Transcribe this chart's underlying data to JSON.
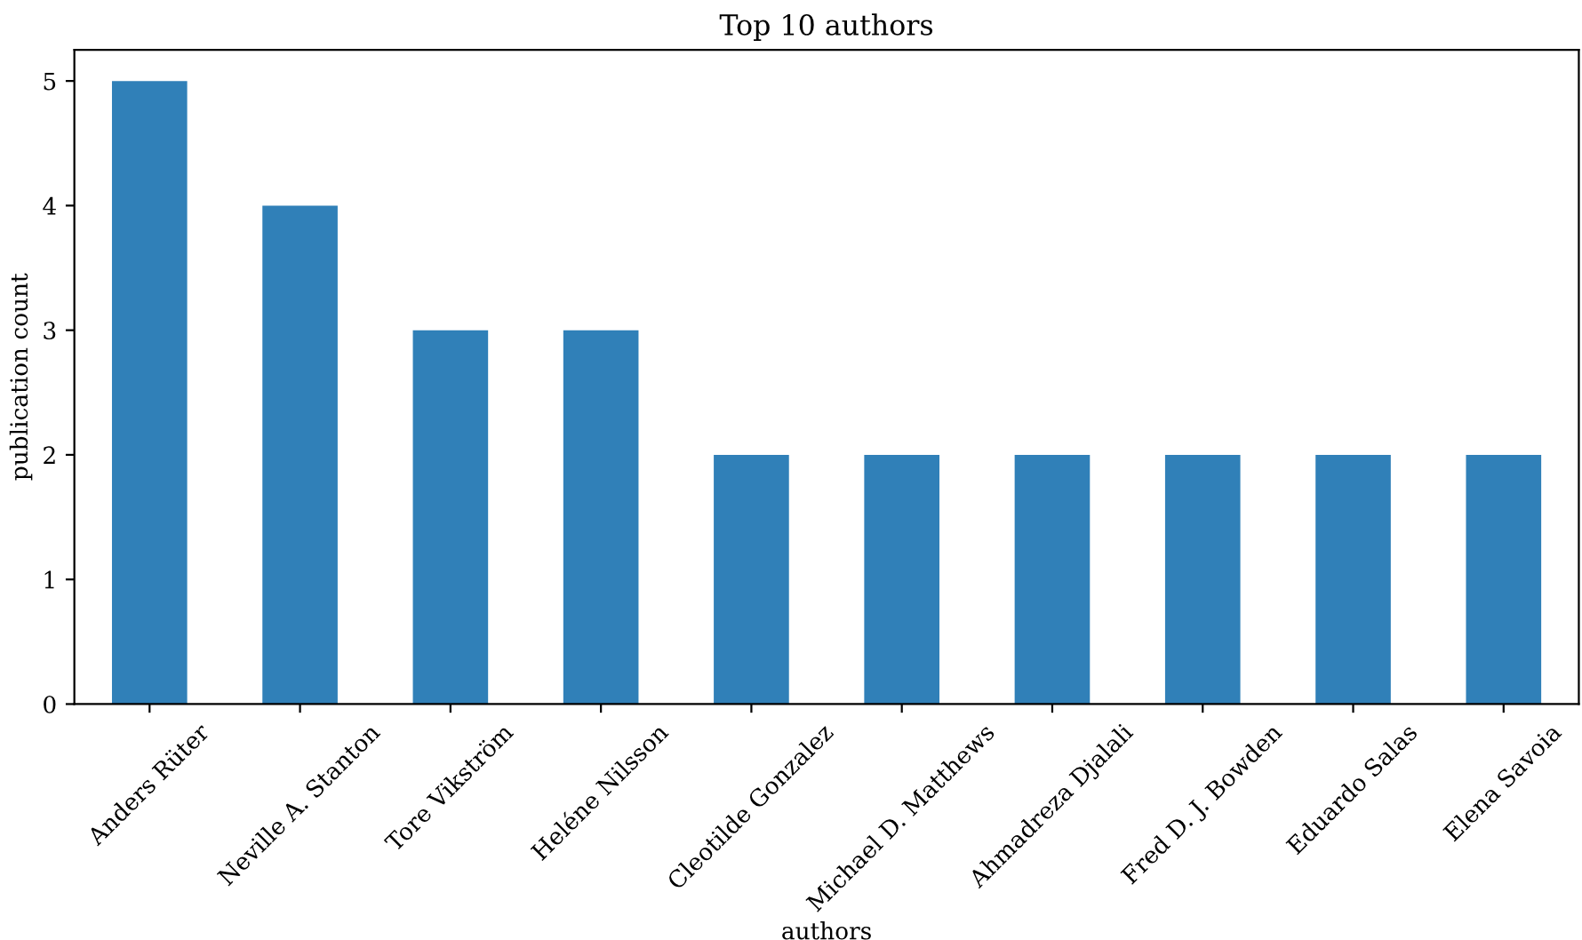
{
  "chart_data": {
    "type": "bar",
    "title": "Top 10 authors",
    "xlabel": "authors",
    "ylabel": "publication count",
    "categories": [
      "Anders Rüter",
      "Neville A. Stanton",
      "Tore Vikström",
      "Heléne Nilsson",
      "Cleotilde Gonzalez",
      "Michael D. Matthews",
      "Ahmadreza Djalali",
      "Fred D. J. Bowden",
      "Eduardo Salas",
      "Elena Savoia"
    ],
    "values": [
      5,
      4,
      3,
      3,
      2,
      2,
      2,
      2,
      2,
      2
    ],
    "color": "#3080b8",
    "ylim": [
      0,
      5.25
    ],
    "yticks": [
      0,
      1,
      2,
      3,
      4,
      5
    ],
    "grid": false,
    "legend": false
  }
}
